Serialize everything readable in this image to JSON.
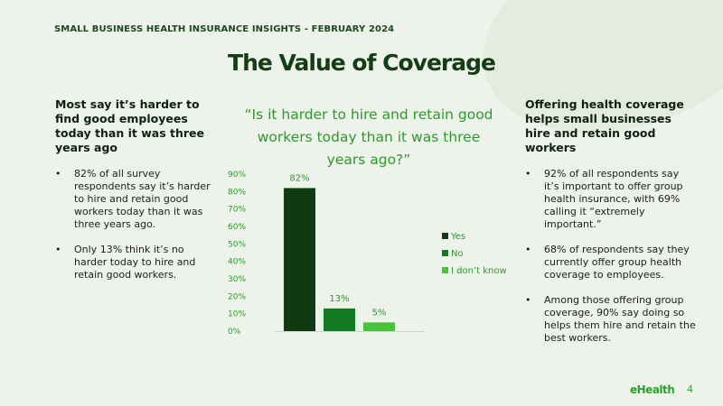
{
  "header": {
    "eyebrow": "SMALL BUSINESS HEALTH INSURANCE INSIGHTS - FEBRUARY 2024",
    "title": "The Value of Coverage"
  },
  "left": {
    "heading": "Most say it’s harder to find good employees today than it was three years ago",
    "bullets": [
      "82% of all survey respondents say it’s harder to hire and retain good workers today than it was three years ago.",
      "Only 13% think it’s no harder today to hire and retain good workers."
    ]
  },
  "right": {
    "heading": "Offering health coverage helps small businesses hire and retain good workers",
    "bullets": [
      "92% of all respondents say it’s important to offer group health insurance, with 69% calling it “extremely important.”",
      "68% of respondents say they currently offer group health coverage to employees.",
      "Among those offering group coverage, 90% say doing so helps them hire and retain the best workers."
    ]
  },
  "chart_data": {
    "type": "bar",
    "title": "“Is it harder to hire and retain good workers today than it was three years ago?”",
    "categories": [
      "Yes",
      "No",
      "I don’t know"
    ],
    "values": [
      82,
      13,
      5
    ],
    "value_labels": [
      "82%",
      "13%",
      "5%"
    ],
    "ylim": [
      0,
      90
    ],
    "yticks": [
      "0%",
      "10%",
      "20%",
      "30%",
      "40%",
      "50%",
      "60%",
      "70%",
      "80%",
      "90%"
    ],
    "grid": false,
    "legend": "right",
    "colors": [
      "#0f3a12",
      "#137a22",
      "#45c33a"
    ],
    "label_color": "#2d9a2a"
  },
  "footer": {
    "brand": "eHealth",
    "page": "4"
  }
}
